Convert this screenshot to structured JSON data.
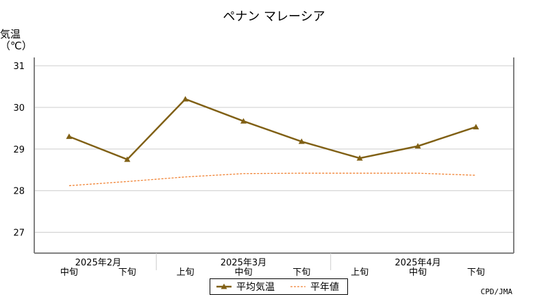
{
  "chart_data": {
    "type": "line",
    "title": "ペナン マレーシア",
    "ylabel": "気温\n（℃）",
    "ylim": [
      26.5,
      31.2
    ],
    "yticks": [
      27,
      28,
      29,
      30,
      31
    ],
    "categories": [
      "2025年2月 中旬",
      "2025年2月 下旬",
      "2025年3月 上旬",
      "2025年3月 中旬",
      "2025年3月 下旬",
      "2025年4月 上旬",
      "2025年4月 中旬",
      "2025年4月 下旬"
    ],
    "dekad_labels": [
      "中旬",
      "下旬",
      "上旬",
      "中旬",
      "下旬",
      "上旬",
      "中旬",
      "下旬"
    ],
    "month_labels": [
      {
        "label": "2025年2月",
        "category_index": 0.5
      },
      {
        "label": "2025年3月",
        "category_index": 3
      },
      {
        "label": "2025年4月",
        "category_index": 6
      }
    ],
    "series": [
      {
        "name": "平均気温",
        "color": "#806015",
        "style": "solid-triangle",
        "values": [
          29.3,
          28.75,
          30.2,
          29.67,
          29.18,
          28.78,
          29.07,
          29.53
        ]
      },
      {
        "name": "平年値",
        "color": "#f08030",
        "style": "dashed",
        "values": [
          28.12,
          28.22,
          28.33,
          28.41,
          28.42,
          28.42,
          28.42,
          28.37
        ]
      }
    ],
    "grid": true,
    "legend_position": "bottom-center"
  },
  "credit": "CPD/JMA"
}
